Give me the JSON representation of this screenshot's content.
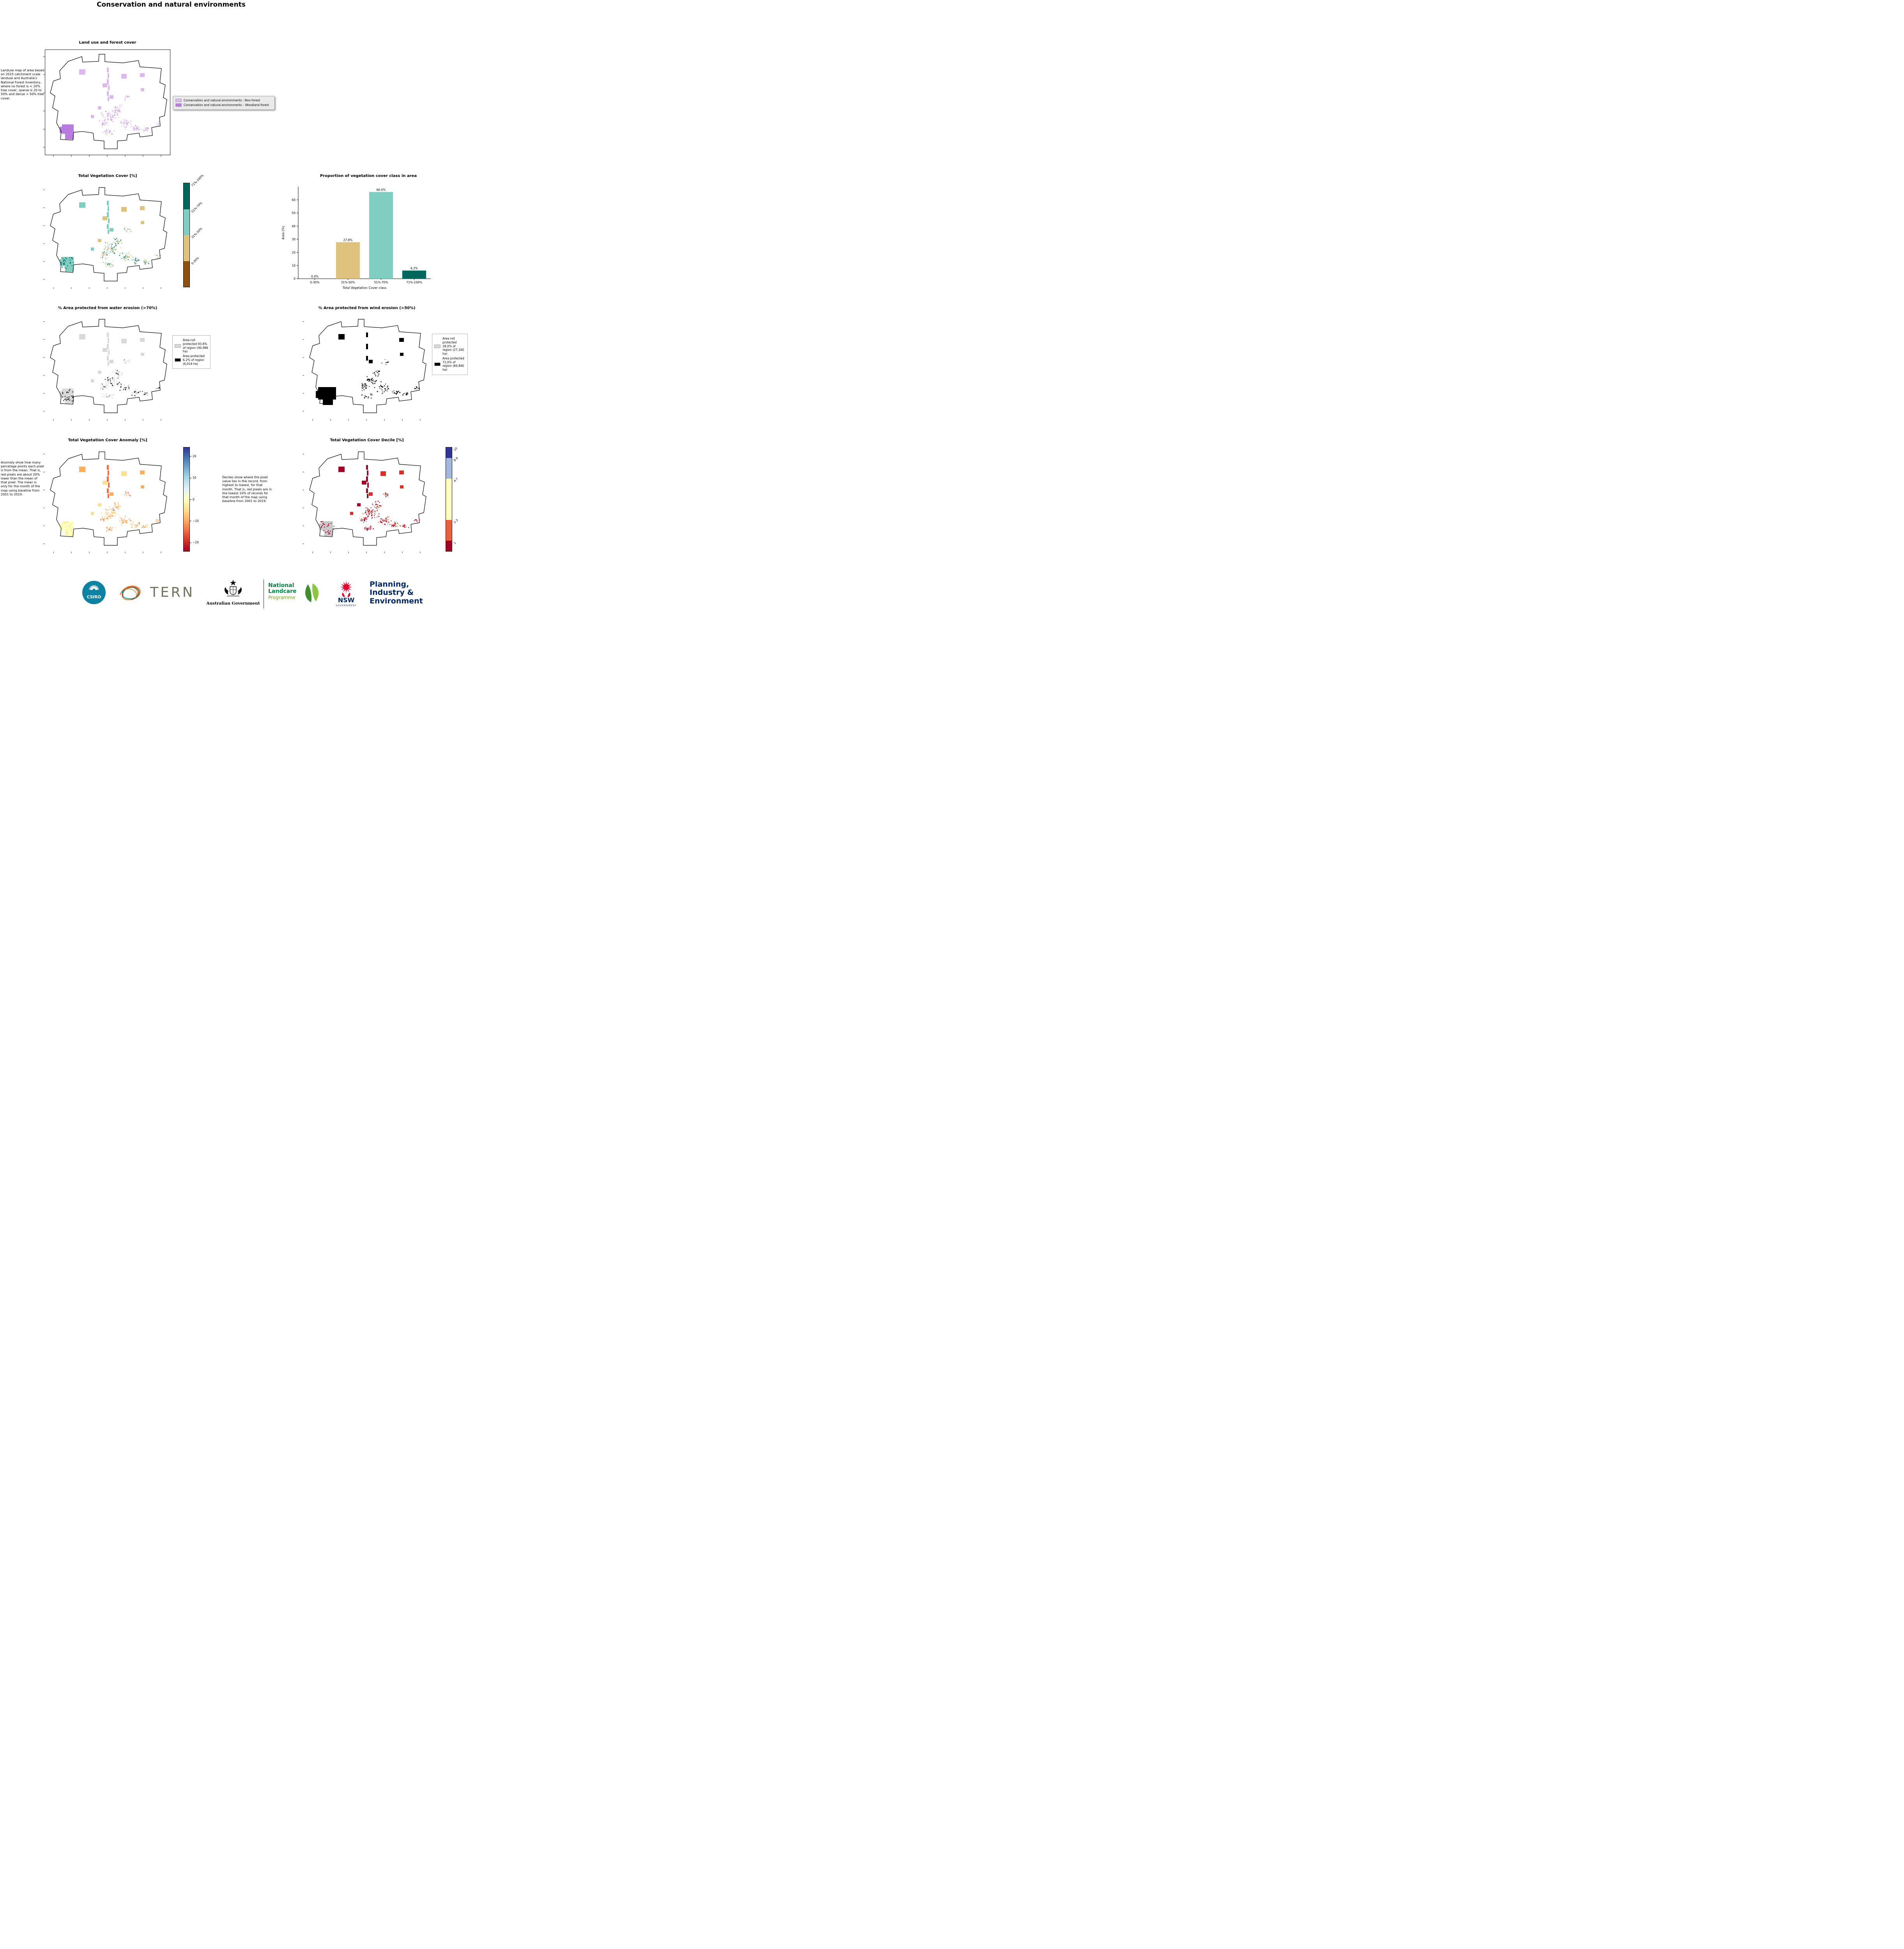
{
  "page": {
    "title": "Conservation and natural environments"
  },
  "chart_data": {
    "type": "bar",
    "title": "Proportion of vegetation cover class in area",
    "categories": [
      "0-30%",
      "31%-50%",
      "51%-70%",
      "71%-100%"
    ],
    "values": [
      0.0,
      27.8,
      66.0,
      6.2
    ],
    "bar_labels": [
      "0.0%",
      "27.8%",
      "66.0%",
      "6.2%"
    ],
    "colors": [
      "#8c510a",
      "#dfc27d",
      "#80cdc1",
      "#01665e"
    ],
    "xlabel": "Total Vegetation Cover class",
    "ylabel": "Area (%)",
    "ylim": [
      0,
      70
    ],
    "yticks": [
      0,
      10,
      20,
      30,
      40,
      50,
      60
    ],
    "legend_position": "none",
    "grid": false
  },
  "panels": {
    "landuse": {
      "title": "Land use and forest cover",
      "description": "Landuse map of area based on 2015 catchment scale landuse and Australia's National Forest Inventory, where no forest is < 20% tree cover, sparse is 20 to 50% and dense > 50% tree cover.",
      "legend": [
        {
          "label": "Conservation and natural environments - Non-forest",
          "color": "#dcb8f0"
        },
        {
          "label": "Conservation and natural environments – Woodland forest",
          "color": "#b87ce0"
        }
      ]
    },
    "veg_cover": {
      "title": "Total Vegetation Cover [%]",
      "colorbar": [
        {
          "label": "71%-100%",
          "color": "#01665e"
        },
        {
          "label": "51%-70%",
          "color": "#80cdc1"
        },
        {
          "label": "31%-50%",
          "color": "#dfc27d"
        },
        {
          "label": "0-30%",
          "color": "#8c510a"
        }
      ]
    },
    "water_erosion": {
      "title": "% Area protected from water erosion (>70%)",
      "legend": [
        {
          "label": "Area not protected 93.8% of region (90,986 ha)",
          "color": "#d9d9d9"
        },
        {
          "label": "Area protected 6.2% of region (6,014 ha)",
          "color": "#000000"
        }
      ]
    },
    "wind_erosion": {
      "title": "% Area protected from wind erosion (>50%)",
      "legend": [
        {
          "label": "Area not protected 28.0% of region (27,160 ha)",
          "color": "#d9d9d9"
        },
        {
          "label": "Area protected 72.0% of region (69,840 ha)",
          "color": "#000000"
        }
      ]
    },
    "anomaly": {
      "title": "Total Vegetation Cover Anomaly [%]",
      "description": "Anomaly show how many percetage points each pixel is from the mean. That is, red pixels are about 20% lower than the mean of that pixel. The mean is only for the month of the map using baseline from 2001 to 2019.",
      "colorbar_gradient": [
        "#313695",
        "#4575b4",
        "#74add1",
        "#abd9e9",
        "#e0f3f8",
        "#ffffbf",
        "#fee090",
        "#fdae61",
        "#f46d43",
        "#d73027",
        "#a50026"
      ],
      "colorbar_range": [
        -24,
        24
      ],
      "colorbar_ticks": [
        {
          "value": 20,
          "label": "20"
        },
        {
          "value": 10,
          "label": "10"
        },
        {
          "value": 0,
          "label": "0"
        },
        {
          "value": -10,
          "label": "−10"
        },
        {
          "value": -20,
          "label": "−20"
        }
      ],
      "map_palette": [
        "#fee090",
        "#fdae61",
        "#f46d43",
        "#ffffbf"
      ]
    },
    "decile": {
      "title": "Total Vegetation Cover Decile [%]",
      "description": "Deciles show where the pixel value lies in the record, from highest to lowest, for that month. That is, red pixels are in the lowest 10% of records for that month of the map using baseline from 2001 to 2019.",
      "colorbar": [
        {
          "label": "10",
          "color": "#313695",
          "span": 1
        },
        {
          "label": "8-9",
          "color": "#a3b8da",
          "span": 2
        },
        {
          "label": "4-7",
          "color": "#ffffbf",
          "span": 4
        },
        {
          "label": "2-3",
          "color": "#e8613c",
          "span": 2
        },
        {
          "label": "1",
          "color": "#a50026",
          "span": 1
        }
      ],
      "map_palette": [
        "#a50026",
        "#d73027",
        "#fdae61",
        "#c9c9c9"
      ]
    }
  },
  "footer": {
    "csiro": "CSIRO",
    "tern": "TERN",
    "australian_government": "Australian Government",
    "landcare_lines": [
      "National",
      "Landcare",
      "Programme"
    ],
    "nsw": "NSW",
    "nsw_government": "GOVERNMENT",
    "planning_lines": [
      "Planning,",
      "Industry &",
      "Environment"
    ]
  }
}
